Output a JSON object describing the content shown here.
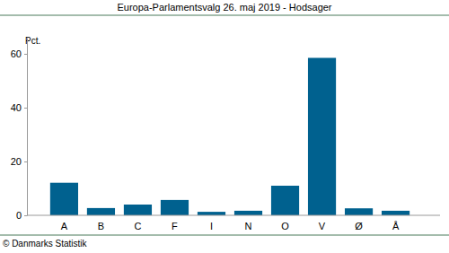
{
  "chart_data": {
    "type": "bar",
    "title": "Europa-Parlamentsvalg 26. maj 2019 - Hodsager",
    "ylabel": "Pct.",
    "annotations": [
      "© Danmarks Statistik"
    ],
    "categories": [
      "A",
      "B",
      "C",
      "F",
      "I",
      "N",
      "O",
      "V",
      "Ø",
      "Å"
    ],
    "values": [
      12.1,
      2.7,
      4.0,
      5.7,
      1.3,
      1.7,
      11.0,
      58.5,
      2.6,
      1.7
    ],
    "color": "#00618f",
    "ylim": [
      0,
      66
    ],
    "yticks": [
      0,
      20,
      40,
      60
    ],
    "grid": false
  }
}
